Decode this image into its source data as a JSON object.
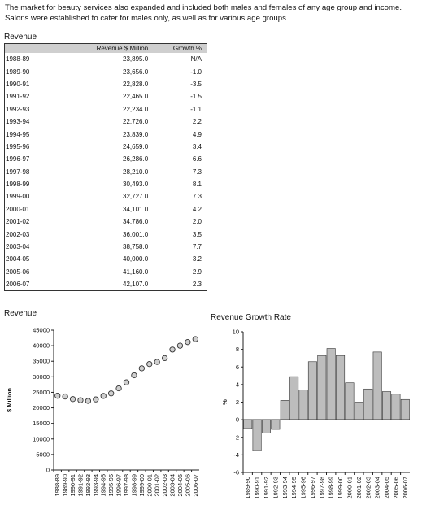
{
  "intro": {
    "line1": "The market for beauty services also expanded and included both males and females of any age group and income.",
    "line2": "Salons were established to cater for males only, as well as for various age groups."
  },
  "table": {
    "title": "Revenue",
    "headers": [
      "",
      "Revenue $ Million",
      "Growth %"
    ],
    "rows": [
      [
        "1988-89",
        "23,895.0",
        "N/A"
      ],
      [
        "1989-90",
        "23,656.0",
        "-1.0"
      ],
      [
        "1990-91",
        "22,828.0",
        "-3.5"
      ],
      [
        "1991-92",
        "22,465.0",
        "-1.5"
      ],
      [
        "1992-93",
        "22,234.0",
        "-1.1"
      ],
      [
        "1993-94",
        "22,726.0",
        "2.2"
      ],
      [
        "1994-95",
        "23,839.0",
        "4.9"
      ],
      [
        "1995-96",
        "24,659.0",
        "3.4"
      ],
      [
        "1996-97",
        "26,286.0",
        "6.6"
      ],
      [
        "1997-98",
        "28,210.0",
        "7.3"
      ],
      [
        "1998-99",
        "30,493.0",
        "8.1"
      ],
      [
        "1999-00",
        "32,727.0",
        "7.3"
      ],
      [
        "2000-01",
        "34,101.0",
        "4.2"
      ],
      [
        "2001-02",
        "34,786.0",
        "2.0"
      ],
      [
        "2002-03",
        "36,001.0",
        "3.5"
      ],
      [
        "2003-04",
        "38,758.0",
        "7.7"
      ],
      [
        "2004-05",
        "40,000.0",
        "3.2"
      ],
      [
        "2005-06",
        "41,160.0",
        "2.9"
      ],
      [
        "2006-07",
        "42,107.0",
        "2.3"
      ]
    ]
  },
  "chart_data": [
    {
      "type": "scatter",
      "title": "Revenue",
      "ylabel": "$ Million",
      "xlabel": "",
      "ylim": [
        0,
        45000
      ],
      "yticks": [
        0,
        5000,
        10000,
        15000,
        20000,
        25000,
        30000,
        35000,
        40000,
        45000
      ],
      "categories": [
        "1988-89",
        "1989-90",
        "1990-91",
        "1991-92",
        "1992-93",
        "1993-94",
        "1994-95",
        "1995-96",
        "1996-97",
        "1997-98",
        "1998-99",
        "1999-00",
        "2000-01",
        "2001-02",
        "2002-03",
        "2003-04",
        "2004-05",
        "2005-06",
        "2006-07"
      ],
      "values": [
        23895,
        23656,
        22828,
        22465,
        22234,
        22726,
        23839,
        24659,
        26286,
        28210,
        30493,
        32727,
        34101,
        34786,
        36001,
        38758,
        40000,
        41160,
        42107
      ],
      "color": "#888888"
    },
    {
      "type": "bar",
      "title": "Revenue Growth Rate",
      "ylabel": "%",
      "xlabel": "",
      "ylim": [
        -6,
        10
      ],
      "yticks": [
        -6,
        -4,
        -2,
        0,
        2,
        4,
        6,
        8,
        10
      ],
      "categories": [
        "1989-90",
        "1990-91",
        "1991-92",
        "1992-93",
        "1993-94",
        "1994-95",
        "1995-96",
        "1996-97",
        "1997-98",
        "1998-99",
        "1999-00",
        "2000-01",
        "2001-02",
        "2002-03",
        "2003-04",
        "2004-05",
        "2005-06",
        "2006-07"
      ],
      "values": [
        -1.0,
        -3.5,
        -1.5,
        -1.1,
        2.2,
        4.9,
        3.4,
        6.6,
        7.3,
        8.1,
        7.3,
        4.2,
        2.0,
        3.5,
        7.7,
        3.2,
        2.9,
        2.3
      ],
      "color": "#bdbdbd"
    }
  ]
}
